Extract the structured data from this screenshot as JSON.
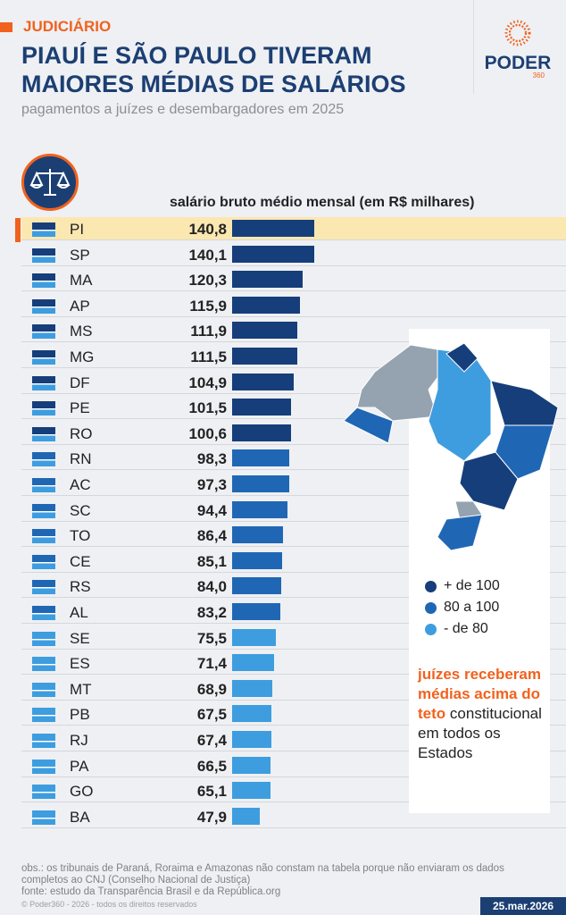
{
  "header": {
    "kicker": "JUDICIÁRIO",
    "title": "PIAUÍ E SÃO PAULO TIVERAM MAIORES MÉDIAS DE SALÁRIOS",
    "subtitle": "pagamentos a juízes e desembargadores em 2025",
    "logo": "PODER",
    "logo_sub": "360"
  },
  "chart_data": {
    "type": "bar",
    "orientation": "horizontal",
    "title": "salário bruto médio mensal (em R$ milhares)",
    "categories": [
      "PI",
      "SP",
      "MA",
      "AP",
      "MS",
      "MG",
      "DF",
      "PE",
      "RO",
      "RN",
      "AC",
      "SC",
      "TO",
      "CE",
      "RS",
      "AL",
      "SE",
      "ES",
      "MT",
      "PB",
      "RJ",
      "PA",
      "GO",
      "BA"
    ],
    "values": [
      140.8,
      140.1,
      120.3,
      115.9,
      111.9,
      111.5,
      104.9,
      101.5,
      100.6,
      98.3,
      97.3,
      94.4,
      86.4,
      85.1,
      84.0,
      83.2,
      75.5,
      71.4,
      68.9,
      67.5,
      67.4,
      66.5,
      65.1,
      47.9
    ],
    "labels": [
      "140,8",
      "140,1",
      "120,3",
      "115,9",
      "111,9",
      "111,5",
      "104,9",
      "101,5",
      "100,6",
      "98,3",
      "97,3",
      "94,4",
      "86,4",
      "85,1",
      "84,0",
      "83,2",
      "75,5",
      "71,4",
      "68,9",
      "67,5",
      "67,4",
      "66,5",
      "65,1",
      "47,9"
    ],
    "highlight": "PI",
    "colors": {
      "high": "#163e7a",
      "mid": "#1f67b5",
      "low": "#3e9ddf",
      "highlight_row": "#fbe7b0"
    }
  },
  "legend": [
    {
      "label": "+ de 100",
      "color": "#163e7a"
    },
    {
      "label": "80 a 100",
      "color": "#1f67b5"
    },
    {
      "label": "- de 80",
      "color": "#3e9ddf"
    }
  ],
  "note": {
    "highlight": "juízes receberam médias acima do teto",
    "rest": "constitucional em todos os Estados"
  },
  "footer": {
    "obs": "obs.: os tribunais de Paraná, Roraima e Amazonas não constam na tabela porque não enviaram os dados completos ao CNJ (Conselho Nacional de Justiça)",
    "source": "fonte: estudo da Transparência Brasil e da República.org",
    "copyright": "© Poder360 - 2026 - todos os direitos reservados",
    "date": "25.mar.2026"
  }
}
